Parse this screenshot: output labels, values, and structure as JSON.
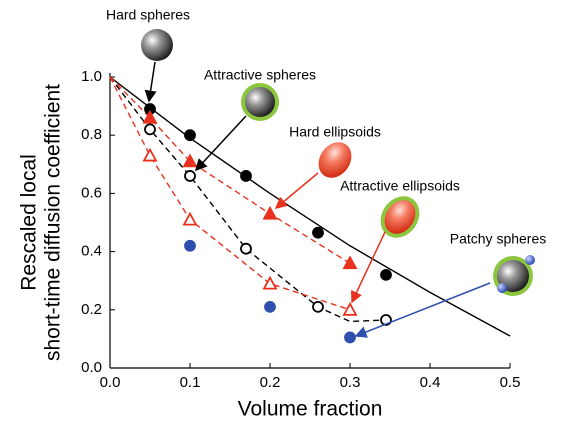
{
  "chart_data": {
    "type": "scatter",
    "x_label": "Volume fraction",
    "y_label": [
      "Rescaled local",
      "short-time diffusion coefficient"
    ],
    "xlim": [
      0,
      0.5
    ],
    "ylim": [
      0,
      1.0
    ],
    "xticks": [
      {
        "value": 0,
        "label": "0.0"
      },
      {
        "value": 0.1,
        "label": "0.1"
      },
      {
        "value": 0.2,
        "label": "0.2"
      },
      {
        "value": 0.3,
        "label": "0.3"
      },
      {
        "value": 0.4,
        "label": "0.4"
      },
      {
        "value": 0.5,
        "label": "0.5"
      }
    ],
    "yticks": [
      {
        "value": 0,
        "label": "0.0"
      },
      {
        "value": 0.2,
        "label": "0.2"
      },
      {
        "value": 0.4,
        "label": "0.4"
      },
      {
        "value": 0.6,
        "label": "0.6"
      },
      {
        "value": 0.8,
        "label": "0.8"
      },
      {
        "value": 1.0,
        "label": "1.0"
      }
    ],
    "series": [
      {
        "name": "Hard spheres",
        "color": "#000000",
        "marker": "circle",
        "filled": true,
        "x": [
          0.05,
          0.1,
          0.17,
          0.26,
          0.345
        ],
        "values": [
          0.89,
          0.8,
          0.66,
          0.465,
          0.32
        ]
      },
      {
        "name": "Attractive spheres",
        "color": "#000000",
        "marker": "circle",
        "filled": false,
        "x": [
          0.05,
          0.1,
          0.17,
          0.26,
          0.345
        ],
        "values": [
          0.82,
          0.66,
          0.41,
          0.21,
          0.165
        ]
      },
      {
        "name": "Hard ellipsoids",
        "color": "#e8321e",
        "marker": "triangle",
        "filled": true,
        "x": [
          0.05,
          0.1,
          0.2,
          0.3
        ],
        "values": [
          0.86,
          0.71,
          0.53,
          0.36
        ]
      },
      {
        "name": "Attractive ellipsoids",
        "color": "#e8321e",
        "marker": "triangle",
        "filled": false,
        "x": [
          0.05,
          0.1,
          0.2,
          0.3
        ],
        "values": [
          0.73,
          0.51,
          0.29,
          0.2
        ]
      },
      {
        "name": "Patchy spheres",
        "color": "#2e4fae",
        "marker": "circle",
        "filled": true,
        "x": [
          0.1,
          0.2,
          0.3
        ],
        "values": [
          0.42,
          0.21,
          0.105
        ]
      }
    ],
    "curves": [
      {
        "color": "#000000",
        "dashed": false,
        "x": [
          0,
          0.1,
          0.2,
          0.3,
          0.4,
          0.5
        ],
        "values": [
          1.0,
          0.79,
          0.6,
          0.42,
          0.26,
          0.11
        ]
      },
      {
        "color": "#000000",
        "dashed": true,
        "x": [
          0,
          0.05,
          0.1,
          0.17,
          0.26,
          0.3,
          0.345
        ],
        "values": [
          1.0,
          0.82,
          0.66,
          0.41,
          0.21,
          0.16,
          0.165
        ]
      },
      {
        "color": "#e8321e",
        "dashed": true,
        "x": [
          0,
          0.05,
          0.1,
          0.2,
          0.3
        ],
        "values": [
          1.0,
          0.86,
          0.71,
          0.53,
          0.36
        ]
      },
      {
        "color": "#e8321e",
        "dashed": true,
        "x": [
          0,
          0.05,
          0.1,
          0.2,
          0.3
        ],
        "values": [
          1.0,
          0.73,
          0.51,
          0.29,
          0.2
        ]
      }
    ]
  }
}
